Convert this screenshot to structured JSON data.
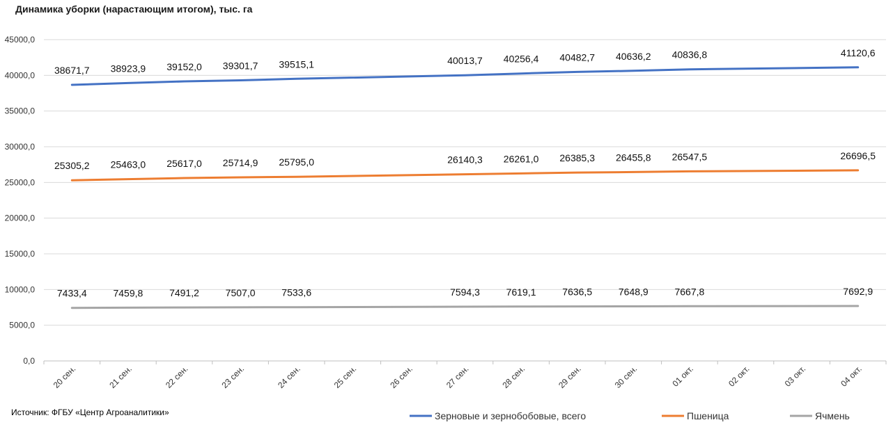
{
  "title": "Динамика уборки (нарастающим итогом), тыс. га",
  "source": "Источник: ФГБУ «Центр Агроаналитики»",
  "chart_data": {
    "type": "line",
    "title": "Динамика уборки (нарастающим итогом), тыс. га",
    "ylim": [
      0,
      45000
    ],
    "y_ticks": [
      "0,0",
      "5000,0",
      "10000,0",
      "15000,0",
      "20000,0",
      "25000,0",
      "30000,0",
      "35000,0",
      "40000,0",
      "45000,0"
    ],
    "grid": true,
    "legend_position": "bottom-right",
    "categories": [
      "20 сен.",
      "21 сен.",
      "22 сен.",
      "23 сен.",
      "24 сен.",
      "25 сен.",
      "26 сен.",
      "27 сен.",
      "28 сен.",
      "29 сен.",
      "30 сен.",
      "01 окт.",
      "02 окт.",
      "03 окт.",
      "04 окт."
    ],
    "series": [
      {
        "name": "Зерновые и зернобобовые, всего",
        "color": "#4472c4",
        "values": [
          38671.7,
          38923.9,
          39152.0,
          39301.7,
          39515.1,
          null,
          null,
          40013.7,
          40256.4,
          40482.7,
          40636.2,
          40836.8,
          null,
          null,
          41120.6
        ],
        "labels": [
          "38671,7",
          "38923,9",
          "39152,0",
          "39301,7",
          "39515,1",
          "",
          "",
          "40013,7",
          "40256,4",
          "40482,7",
          "40636,2",
          "40836,8",
          "",
          "",
          "41120,6"
        ]
      },
      {
        "name": "Пшеница",
        "color": "#ed7d31",
        "values": [
          25305.2,
          25463.0,
          25617.0,
          25714.9,
          25795.0,
          null,
          null,
          26140.3,
          26261.0,
          26385.3,
          26455.8,
          26547.5,
          null,
          null,
          26696.5
        ],
        "labels": [
          "25305,2",
          "25463,0",
          "25617,0",
          "25714,9",
          "25795,0",
          "",
          "",
          "26140,3",
          "26261,0",
          "26385,3",
          "26455,8",
          "26547,5",
          "",
          "",
          "26696,5"
        ]
      },
      {
        "name": "Ячмень",
        "color": "#a5a5a5",
        "values": [
          7433.4,
          7459.8,
          7491.2,
          7507.0,
          7533.6,
          null,
          null,
          7594.3,
          7619.1,
          7636.5,
          7648.9,
          7667.8,
          null,
          null,
          7692.9
        ],
        "labels": [
          "7433,4",
          "7459,8",
          "7491,2",
          "7507,0",
          "7533,6",
          "",
          "",
          "7594,3",
          "7619,1",
          "7636,5",
          "7648,9",
          "7667,8",
          "",
          "",
          "7692,9"
        ]
      }
    ]
  }
}
